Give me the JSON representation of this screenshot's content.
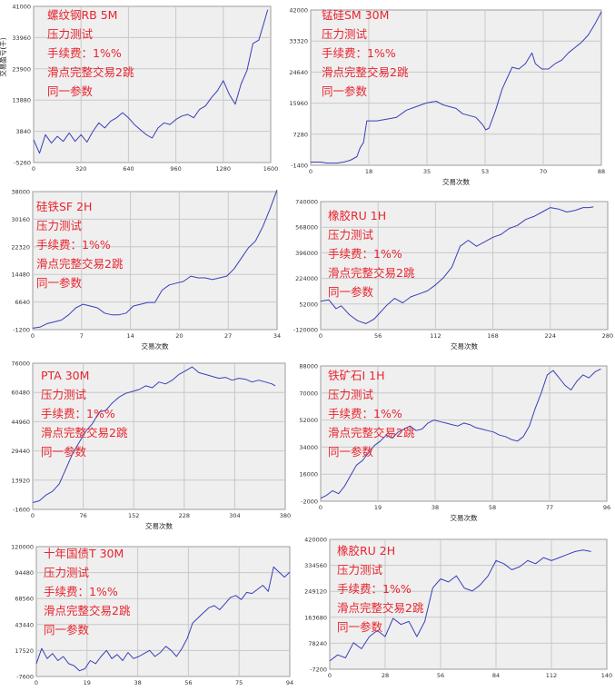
{
  "chart_data": [
    {
      "type": "line",
      "annotations": [
        "螺纹钢RB 5M",
        "压力测试",
        "手续费：1%%",
        "滑点完整交易2跳",
        "同一参数"
      ],
      "xlabel": "",
      "ylabel": "交易盈亏(千)",
      "xticks": [
        "0",
        "320",
        "640",
        "960",
        "1280",
        "1600"
      ],
      "yticks": [
        "-5260",
        "3840",
        "13880",
        "23900",
        "33960",
        "41000"
      ],
      "xlim": [
        0,
        1600
      ],
      "ylim": [
        -5260,
        41000
      ],
      "grid": true,
      "x": [
        0,
        40,
        80,
        120,
        160,
        200,
        240,
        280,
        320,
        360,
        400,
        440,
        480,
        520,
        560,
        600,
        640,
        680,
        720,
        760,
        800,
        840,
        880,
        920,
        960,
        1000,
        1040,
        1080,
        1120,
        1160,
        1200,
        1240,
        1280,
        1320,
        1360,
        1400,
        1440,
        1480,
        1520,
        1560,
        1580
      ],
      "values": [
        1500,
        -2500,
        3000,
        500,
        2500,
        1000,
        3500,
        1000,
        3000,
        800,
        4000,
        6500,
        5000,
        7000,
        8000,
        9500,
        8000,
        6000,
        4500,
        3000,
        2000,
        5000,
        6500,
        6000,
        7500,
        8500,
        9000,
        8000,
        10500,
        11500,
        14000,
        16000,
        19000,
        15000,
        12000,
        18000,
        22000,
        30000,
        31000,
        37000,
        40000
      ]
    },
    {
      "type": "line",
      "annotations": [
        "锰硅SM 30M",
        "压力测试",
        "手续费：1%%",
        "滑点完整交易2跳",
        "同一参数"
      ],
      "xlabel": "交易次数",
      "ylabel": "",
      "xticks": [
        "0",
        "18",
        "35",
        "53",
        "70",
        "88"
      ],
      "yticks": [
        "-1400",
        "7280",
        "15960",
        "24640",
        "33320",
        "42000"
      ],
      "xlim": [
        0,
        88
      ],
      "ylim": [
        -1400,
        42000
      ],
      "grid": true,
      "x": [
        0,
        3,
        5,
        8,
        10,
        12,
        14,
        15,
        16,
        17,
        20,
        23,
        26,
        29,
        32,
        35,
        38,
        40,
        42,
        44,
        46,
        48,
        50,
        52,
        53,
        54,
        56,
        58,
        61,
        63,
        65,
        67,
        68,
        70,
        72,
        74,
        76,
        78,
        80,
        82,
        84,
        86,
        88
      ],
      "values": [
        -500,
        -500,
        -800,
        -800,
        -500,
        0,
        1000,
        3500,
        5000,
        11000,
        11000,
        11500,
        12000,
        14000,
        15000,
        16000,
        16500,
        15500,
        15000,
        14500,
        13000,
        12500,
        12000,
        10000,
        8500,
        9000,
        14000,
        20000,
        26000,
        25500,
        27000,
        30000,
        27000,
        25500,
        25500,
        27000,
        28000,
        30000,
        31500,
        33000,
        35000,
        38000,
        41500
      ]
    },
    {
      "type": "line",
      "annotations": [
        "硅铁SF 2H",
        "压力测试",
        "手续费：1%%",
        "滑点完整交易2跳",
        "同一参数"
      ],
      "xlabel": "交易次数",
      "ylabel": "",
      "xticks": [
        "0",
        "7",
        "14",
        "20",
        "27",
        "34"
      ],
      "yticks": [
        "-1200",
        "6640",
        "14480",
        "22320",
        "30160",
        "38000"
      ],
      "xlim": [
        0,
        34
      ],
      "ylim": [
        -1200,
        38000
      ],
      "grid": true,
      "x": [
        0,
        1,
        2,
        3,
        4,
        5,
        6,
        7,
        8,
        9,
        10,
        11,
        12,
        13,
        14,
        15,
        16,
        17,
        18,
        19,
        20,
        21,
        22,
        23,
        24,
        25,
        26,
        27,
        28,
        29,
        30,
        31,
        32,
        33,
        34
      ],
      "values": [
        -800,
        -500,
        500,
        1000,
        1500,
        3000,
        5000,
        6000,
        5500,
        5000,
        3500,
        3000,
        3000,
        3500,
        5500,
        6000,
        6500,
        6500,
        10000,
        11500,
        12000,
        12500,
        14000,
        13500,
        13500,
        13000,
        13500,
        14000,
        16000,
        19000,
        22000,
        24000,
        28000,
        33000,
        38500
      ]
    },
    {
      "type": "line",
      "annotations": [
        "橡胶RU 1H",
        "压力测试",
        "手续费：1%%",
        "滑点完整交易2跳",
        "同一参数"
      ],
      "xlabel": "交易次数",
      "ylabel": "",
      "xticks": [
        "0",
        "56",
        "112",
        "168",
        "224",
        "280"
      ],
      "yticks": [
        "-120000",
        "52000",
        "224000",
        "396000",
        "568000",
        "740000"
      ],
      "xlim": [
        0,
        280
      ],
      "ylim": [
        -120000,
        740000
      ],
      "grid": true,
      "x": [
        0,
        8,
        15,
        20,
        28,
        36,
        44,
        52,
        56,
        64,
        72,
        80,
        88,
        96,
        104,
        112,
        120,
        128,
        136,
        144,
        152,
        160,
        168,
        176,
        184,
        192,
        200,
        208,
        216,
        224,
        232,
        240,
        248,
        256,
        262,
        266
      ],
      "values": [
        70000,
        80000,
        20000,
        40000,
        -20000,
        -60000,
        -80000,
        -50000,
        -20000,
        40000,
        90000,
        60000,
        100000,
        120000,
        140000,
        180000,
        230000,
        300000,
        440000,
        480000,
        440000,
        470000,
        500000,
        520000,
        560000,
        580000,
        620000,
        640000,
        670000,
        700000,
        690000,
        670000,
        680000,
        700000,
        700000,
        705000
      ]
    },
    {
      "type": "line",
      "annotations": [
        "PTA 30M",
        "压力测试",
        "手续费：1%%",
        "滑点完整交易2跳",
        "同一参数"
      ],
      "xlabel": "交易次数",
      "ylabel": "",
      "xticks": [
        "0",
        "76",
        "152",
        "228",
        "304",
        "380"
      ],
      "yticks": [
        "-1600",
        "13920",
        "29440",
        "44960",
        "60480",
        "76000"
      ],
      "xlim": [
        0,
        380
      ],
      "ylim": [
        -1600,
        76000
      ],
      "grid": true,
      "x": [
        0,
        10,
        20,
        30,
        40,
        50,
        60,
        70,
        80,
        90,
        100,
        110,
        120,
        130,
        140,
        150,
        160,
        170,
        180,
        190,
        200,
        210,
        220,
        230,
        240,
        250,
        260,
        270,
        280,
        290,
        300,
        310,
        320,
        330,
        340,
        350,
        360,
        365
      ],
      "values": [
        2000,
        3000,
        6000,
        8000,
        12000,
        20000,
        28000,
        34000,
        40000,
        44000,
        50000,
        51000,
        55000,
        58000,
        60000,
        61000,
        62000,
        64000,
        63000,
        66000,
        65000,
        67000,
        70000,
        72000,
        74000,
        71000,
        70000,
        69000,
        68000,
        68500,
        67000,
        68000,
        67500,
        66000,
        67000,
        66000,
        65000,
        64000
      ]
    },
    {
      "type": "line",
      "annotations": [
        "铁矿石I 1H",
        "压力测试",
        "手续费：1%%",
        "滑点完整交易2跳",
        "同一参数"
      ],
      "xlabel": "交易次数",
      "ylabel": "",
      "xticks": [
        "0",
        "19",
        "38",
        "58",
        "77",
        "96"
      ],
      "yticks": [
        "-2000",
        "16000",
        "34000",
        "52000",
        "70000",
        "88000"
      ],
      "xlim": [
        0,
        96
      ],
      "ylim": [
        -2000,
        88000
      ],
      "grid": true,
      "x": [
        0,
        2,
        4,
        6,
        8,
        10,
        12,
        14,
        16,
        18,
        20,
        22,
        24,
        26,
        28,
        30,
        32,
        34,
        36,
        38,
        40,
        42,
        44,
        46,
        48,
        50,
        52,
        54,
        56,
        58,
        60,
        62,
        64,
        66,
        68,
        70,
        72,
        74,
        76,
        78,
        80,
        82,
        84,
        86,
        88,
        90,
        92,
        94
      ],
      "values": [
        0,
        2000,
        5000,
        3000,
        8000,
        15000,
        22000,
        25000,
        30000,
        35000,
        38000,
        42000,
        40000,
        44000,
        46000,
        48000,
        45000,
        46000,
        50000,
        52000,
        51000,
        50000,
        49000,
        48000,
        50000,
        49000,
        47000,
        46000,
        45000,
        44000,
        42000,
        41000,
        39000,
        38000,
        41000,
        48000,
        60000,
        70000,
        82000,
        85000,
        80000,
        75000,
        72000,
        78000,
        82000,
        80000,
        84000,
        86000
      ]
    },
    {
      "type": "line",
      "annotations": [
        "十年国债T 30M",
        "压力测试",
        "手续费：1%%",
        "滑点完整交易2跳",
        "同一参数"
      ],
      "xlabel": "",
      "ylabel": "",
      "xticks": [
        "0",
        "19",
        "38",
        "56",
        "75",
        "94"
      ],
      "yticks": [
        "-7600",
        "17520",
        "43440",
        "68560",
        "94480",
        "120000"
      ],
      "xlim": [
        0,
        94
      ],
      "ylim": [
        -7600,
        120000
      ],
      "grid": true,
      "x": [
        0,
        2,
        4,
        6,
        8,
        10,
        12,
        14,
        16,
        18,
        20,
        22,
        24,
        26,
        28,
        30,
        32,
        34,
        36,
        38,
        40,
        42,
        44,
        46,
        48,
        50,
        52,
        54,
        56,
        58,
        60,
        62,
        64,
        66,
        68,
        70,
        72,
        74,
        76,
        78,
        80,
        82,
        84,
        86,
        88,
        90,
        92,
        94
      ],
      "values": [
        5000,
        20000,
        10000,
        15000,
        8000,
        12000,
        5000,
        3000,
        -2000,
        0,
        8000,
        5000,
        12000,
        18000,
        10000,
        14000,
        8000,
        16000,
        10000,
        12000,
        15000,
        18000,
        12000,
        16000,
        22000,
        18000,
        12000,
        20000,
        30000,
        45000,
        50000,
        55000,
        60000,
        62000,
        58000,
        64000,
        70000,
        72000,
        68000,
        75000,
        74000,
        78000,
        82000,
        76000,
        100000,
        95000,
        90000,
        95000
      ]
    },
    {
      "type": "line",
      "annotations": [
        "橡胶RU 2H",
        "压力测试",
        "手续费：1%%",
        "滑点完整交易2跳",
        "同一参数"
      ],
      "xlabel": "",
      "ylabel": "",
      "xticks": [
        "0",
        "28",
        "56",
        "84",
        "112",
        "140"
      ],
      "yticks": [
        "-7200",
        "78240",
        "163680",
        "249120",
        "334560",
        "420000"
      ],
      "xlim": [
        0,
        140
      ],
      "ylim": [
        -7200,
        420000
      ],
      "grid": true,
      "x": [
        0,
        4,
        8,
        12,
        16,
        20,
        24,
        28,
        32,
        36,
        40,
        44,
        48,
        52,
        56,
        60,
        64,
        68,
        72,
        76,
        80,
        84,
        88,
        92,
        96,
        100,
        104,
        108,
        112,
        116,
        120,
        124,
        128,
        132
      ],
      "values": [
        20000,
        40000,
        30000,
        80000,
        60000,
        100000,
        120000,
        100000,
        160000,
        140000,
        150000,
        100000,
        150000,
        260000,
        290000,
        280000,
        300000,
        260000,
        250000,
        270000,
        300000,
        350000,
        340000,
        320000,
        330000,
        350000,
        340000,
        360000,
        350000,
        360000,
        370000,
        380000,
        385000,
        380000
      ]
    }
  ]
}
